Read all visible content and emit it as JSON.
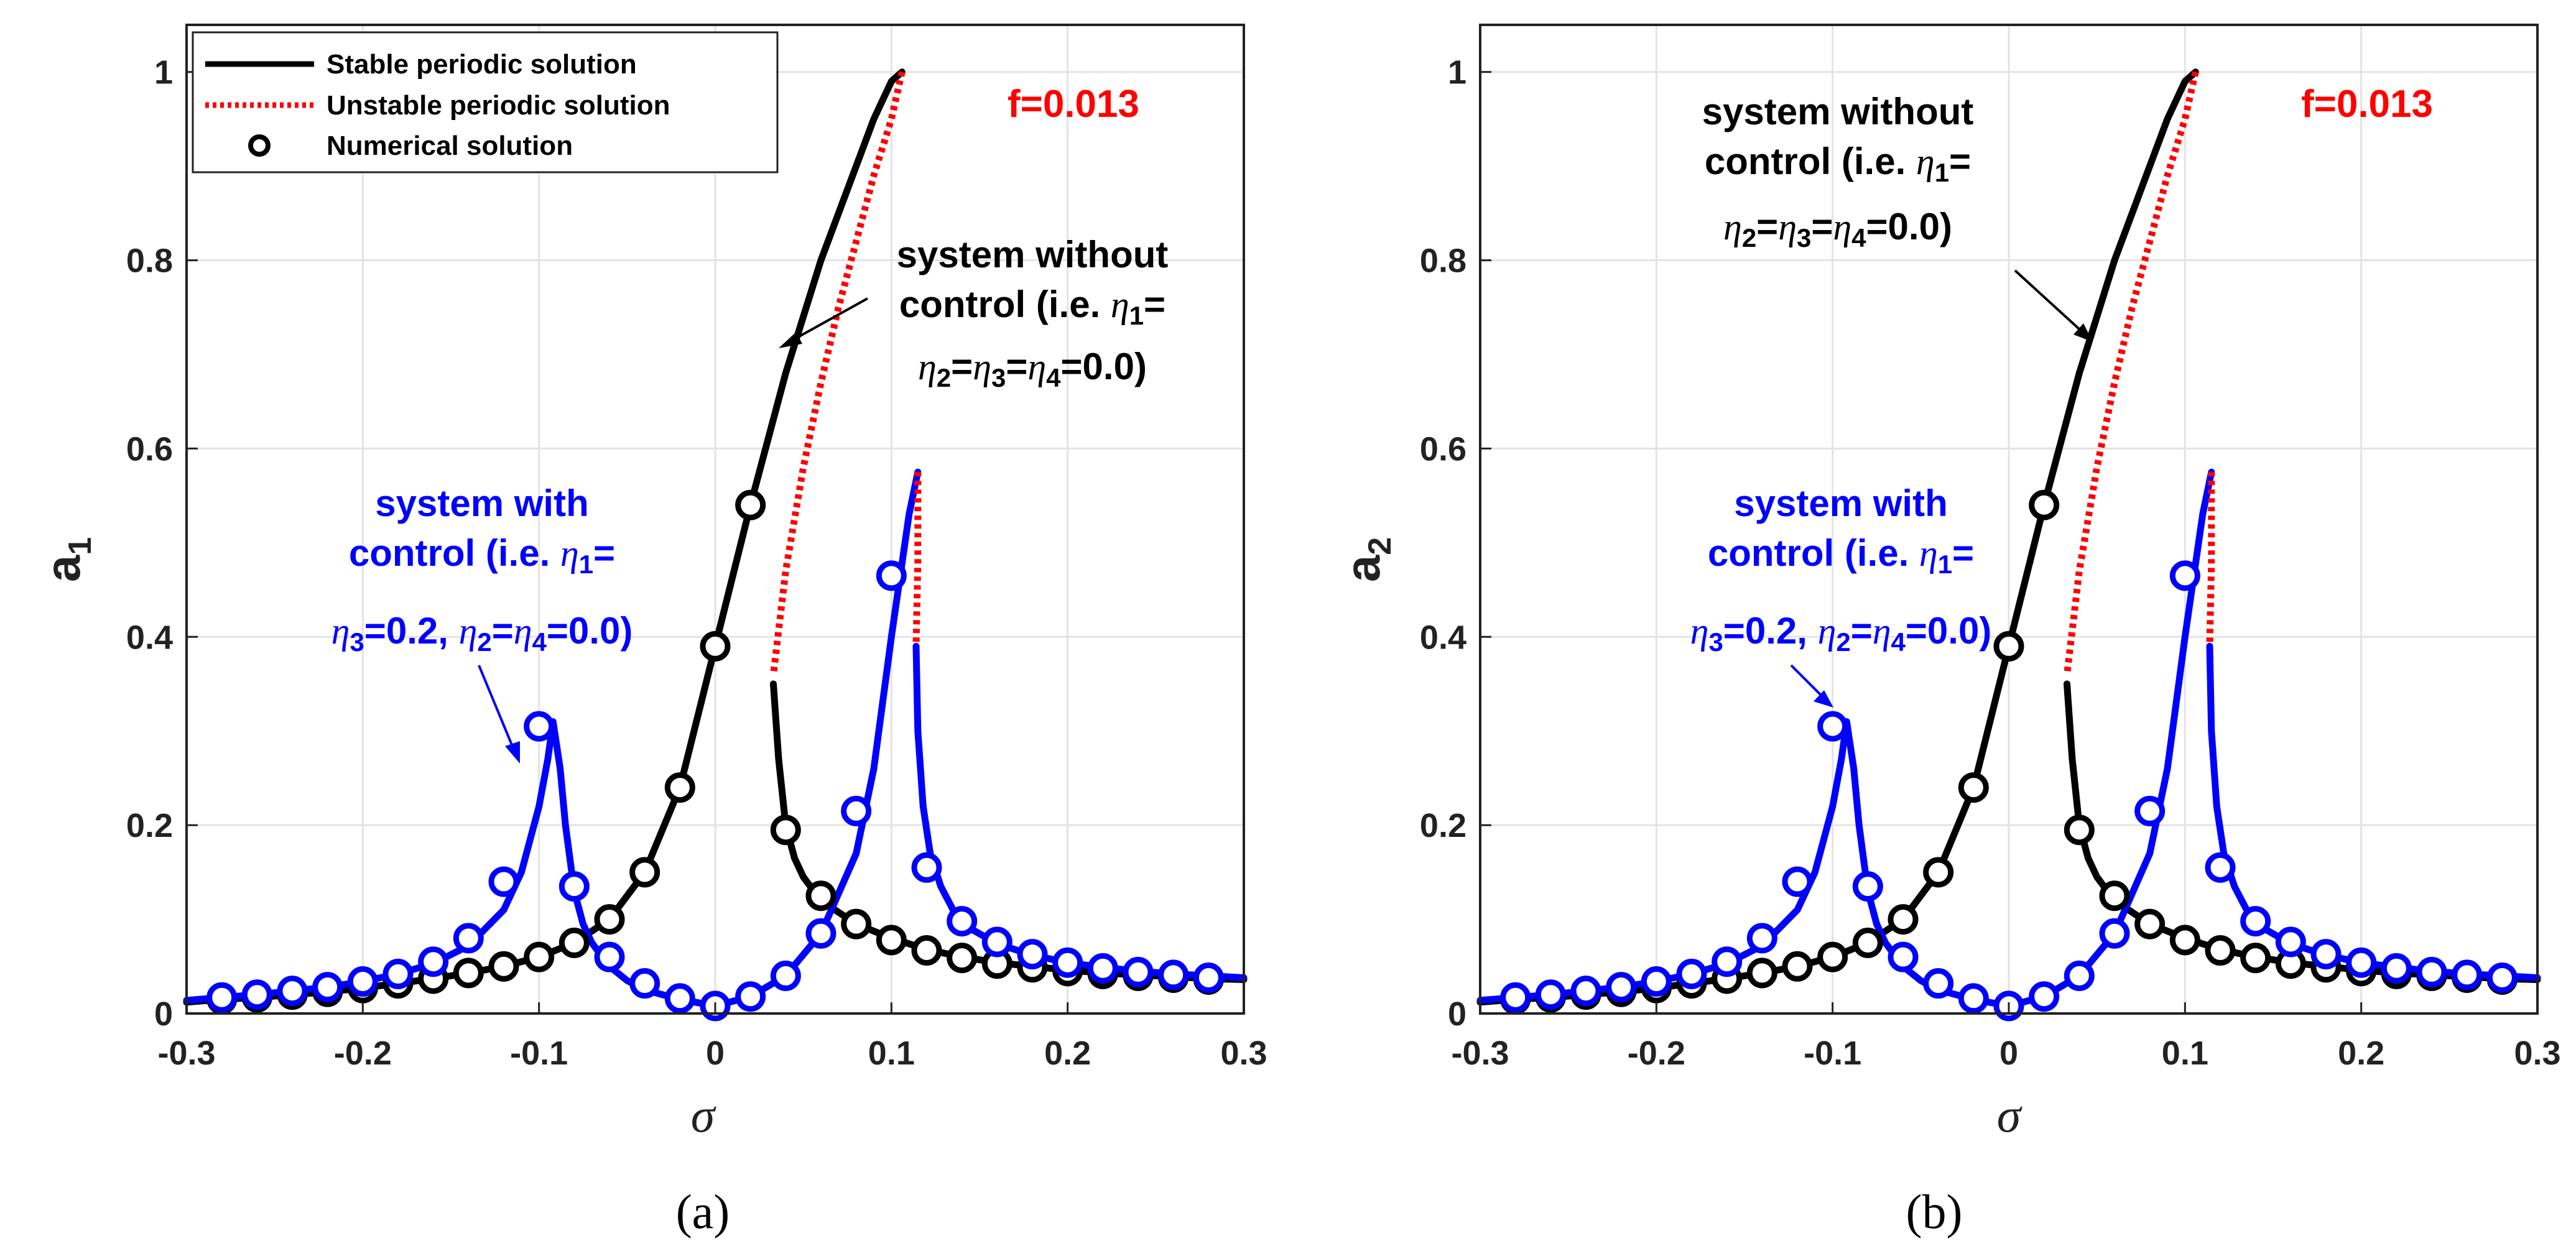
{
  "chart_data": [
    {
      "type": "line",
      "panel_caption": "(a)",
      "xlabel": "σ",
      "ylabel": "a",
      "ylabel_sub": "1",
      "xlim": [
        -0.3,
        0.3
      ],
      "ylim": [
        0,
        1.05
      ],
      "xticks": [
        -0.3,
        -0.2,
        -0.1,
        0,
        0.1,
        0.2,
        0.3
      ],
      "xtick_labels": [
        "-0.3",
        "-0.2",
        "-0.1",
        "0",
        "0.1",
        "0.2",
        "0.3"
      ],
      "yticks": [
        0,
        0.2,
        0.4,
        0.6,
        0.8,
        1
      ],
      "ytick_labels": [
        "0",
        "0.2",
        "0.4",
        "0.6",
        "0.8",
        "1"
      ],
      "grid": true,
      "legend_position": "top-left",
      "legend": [
        "Stable periodic solution",
        "Unstable periodic solution",
        "Numerical solution"
      ],
      "f_text": "f=0.013",
      "annotations": {
        "without": {
          "line1": "system without",
          "line2_pre": "control (i.e. ",
          "eta": "η",
          "s1": "1",
          "line2_post": "=",
          "l3_eta1": "η",
          "l3_s1": "2",
          "l3_eq1": "=",
          "l3_eta2": "η",
          "l3_s2": "3",
          "l3_eq2": "=",
          "l3_eta3": "η",
          "l3_s3": "4",
          "l3_post": "=0.0)"
        },
        "with": {
          "line1": "system with",
          "line2_pre": "control (i.e. ",
          "eta": "η",
          "s1": "1",
          "line2_post": "=",
          "l3_eta1": "η",
          "l3_s1": "3",
          "l3_mid": "=0.2, ",
          "l3_eta2": "η",
          "l3_s2": "2",
          "l3_eq2": "=",
          "l3_eta3": "η",
          "l3_s3": "4",
          "l3_post": "=0.0)"
        }
      },
      "series": [
        {
          "name": "without control - stable branch",
          "color": "#000000",
          "style": "solid",
          "x": [
            -0.3,
            -0.28,
            -0.26,
            -0.24,
            -0.22,
            -0.2,
            -0.18,
            -0.16,
            -0.14,
            -0.12,
            -0.1,
            -0.08,
            -0.06,
            -0.04,
            -0.02,
            0,
            0.02,
            0.04,
            0.06,
            0.08,
            0.09,
            0.1,
            0.106
          ],
          "y": [
            0.012,
            0.015,
            0.017,
            0.02,
            0.023,
            0.027,
            0.032,
            0.037,
            0.043,
            0.05,
            0.06,
            0.075,
            0.1,
            0.15,
            0.24,
            0.39,
            0.54,
            0.68,
            0.8,
            0.9,
            0.95,
            0.99,
            1.0
          ]
        },
        {
          "name": "without control - unstable branch",
          "color": "#ff0000",
          "style": "dotted",
          "x": [
            0.106,
            0.1,
            0.09,
            0.08,
            0.07,
            0.06,
            0.05,
            0.04,
            0.033
          ],
          "y": [
            1.0,
            0.95,
            0.89,
            0.82,
            0.75,
            0.67,
            0.58,
            0.47,
            0.36
          ]
        },
        {
          "name": "without control - lower stable branch",
          "color": "#000000",
          "style": "solid",
          "x": [
            0.033,
            0.036,
            0.04,
            0.045,
            0.05,
            0.06,
            0.08,
            0.1,
            0.12,
            0.14,
            0.16,
            0.18,
            0.2,
            0.22,
            0.24,
            0.26,
            0.28,
            0.3
          ],
          "y": [
            0.35,
            0.27,
            0.2,
            0.165,
            0.145,
            0.12,
            0.095,
            0.08,
            0.068,
            0.06,
            0.054,
            0.05,
            0.046,
            0.043,
            0.041,
            0.039,
            0.037,
            0.036
          ]
        },
        {
          "name": "with control - stable branch",
          "color": "#0000ff",
          "style": "solid",
          "x": [
            -0.3,
            -0.28,
            -0.26,
            -0.24,
            -0.22,
            -0.2,
            -0.18,
            -0.16,
            -0.14,
            -0.12,
            -0.11,
            -0.1,
            -0.095,
            -0.092,
            -0.088,
            -0.085,
            -0.08,
            -0.075,
            -0.07,
            -0.06,
            -0.05,
            -0.04,
            -0.02,
            0,
            0.02,
            0.04,
            0.06,
            0.08,
            0.09,
            0.1,
            0.11,
            0.115
          ],
          "y": [
            0.014,
            0.017,
            0.02,
            0.024,
            0.028,
            0.034,
            0.042,
            0.053,
            0.072,
            0.11,
            0.15,
            0.22,
            0.27,
            0.31,
            0.26,
            0.2,
            0.13,
            0.095,
            0.075,
            0.05,
            0.035,
            0.025,
            0.015,
            0.008,
            0.018,
            0.04,
            0.085,
            0.17,
            0.26,
            0.4,
            0.53,
            0.575
          ]
        },
        {
          "name": "with control - unstable branch",
          "color": "#ff0000",
          "style": "dotted",
          "x": [
            0.115,
            0.115,
            0.114
          ],
          "y": [
            0.575,
            0.48,
            0.39
          ]
        },
        {
          "name": "with control - lower stable branch",
          "color": "#0000ff",
          "style": "solid",
          "x": [
            0.114,
            0.115,
            0.118,
            0.122,
            0.128,
            0.135,
            0.145,
            0.16,
            0.18,
            0.2,
            0.22,
            0.24,
            0.26,
            0.28,
            0.3
          ],
          "y": [
            0.39,
            0.3,
            0.22,
            0.17,
            0.135,
            0.11,
            0.09,
            0.074,
            0.062,
            0.054,
            0.049,
            0.045,
            0.042,
            0.04,
            0.038
          ]
        },
        {
          "name": "numerical - without control",
          "color": "#000000",
          "style": "markers",
          "x": [
            -0.28,
            -0.26,
            -0.24,
            -0.22,
            -0.2,
            -0.18,
            -0.16,
            -0.14,
            -0.12,
            -0.1,
            -0.08,
            -0.06,
            -0.04,
            -0.02,
            0,
            0.02,
            0.04,
            0.06,
            0.08,
            0.1,
            0.12,
            0.14,
            0.16,
            0.18,
            0.2,
            0.22,
            0.24,
            0.26,
            0.28
          ],
          "y": [
            0.015,
            0.017,
            0.02,
            0.023,
            0.027,
            0.032,
            0.037,
            0.043,
            0.05,
            0.06,
            0.075,
            0.1,
            0.15,
            0.24,
            0.39,
            0.54,
            0.195,
            0.125,
            0.095,
            0.078,
            0.067,
            0.059,
            0.053,
            0.049,
            0.045,
            0.042,
            0.04,
            0.038,
            0.036
          ]
        },
        {
          "name": "numerical - with control",
          "color": "#0000ff",
          "style": "markers",
          "x": [
            -0.28,
            -0.26,
            -0.24,
            -0.22,
            -0.2,
            -0.18,
            -0.16,
            -0.14,
            -0.12,
            -0.1,
            -0.08,
            -0.06,
            -0.04,
            -0.02,
            0,
            0.02,
            0.04,
            0.06,
            0.08,
            0.1,
            0.12,
            0.14,
            0.16,
            0.18,
            0.2,
            0.22,
            0.24,
            0.26,
            0.28
          ],
          "y": [
            0.017,
            0.02,
            0.024,
            0.028,
            0.034,
            0.042,
            0.055,
            0.08,
            0.14,
            0.305,
            0.135,
            0.06,
            0.032,
            0.016,
            0.008,
            0.018,
            0.04,
            0.085,
            0.215,
            0.465,
            0.155,
            0.098,
            0.076,
            0.063,
            0.054,
            0.048,
            0.044,
            0.041,
            0.038
          ]
        }
      ]
    },
    {
      "type": "line",
      "panel_caption": "(b)",
      "xlabel": "σ",
      "ylabel": "a",
      "ylabel_sub": "2",
      "xlim": [
        -0.3,
        0.3
      ],
      "ylim": [
        0,
        1.05
      ],
      "xticks": [
        -0.3,
        -0.2,
        -0.1,
        0,
        0.1,
        0.2,
        0.3
      ],
      "xtick_labels": [
        "-0.3",
        "-0.2",
        "-0.1",
        "0",
        "0.1",
        "0.2",
        "0.3"
      ],
      "yticks": [
        0,
        0.2,
        0.4,
        0.6,
        0.8,
        1
      ],
      "ytick_labels": [
        "0",
        "0.2",
        "0.4",
        "0.6",
        "0.8",
        "1"
      ],
      "grid": true,
      "f_text": "f=0.013",
      "annotations": {
        "without": {
          "line1": "system without",
          "line2_pre": "control (i.e. ",
          "eta": "η",
          "s1": "1",
          "line2_post": "=",
          "l3_eta1": "η",
          "l3_s1": "2",
          "l3_eq1": "=",
          "l3_eta2": "η",
          "l3_s2": "3",
          "l3_eq2": "=",
          "l3_eta3": "η",
          "l3_s3": "4",
          "l3_post": "=0.0)"
        },
        "with": {
          "line1": "system with",
          "line2_pre": "control (i.e. ",
          "eta": "η",
          "s1": "1",
          "line2_post": "=",
          "l3_eta1": "η",
          "l3_s1": "3",
          "l3_mid": "=0.2, ",
          "l3_eta2": "η",
          "l3_s2": "2",
          "l3_eq2": "=",
          "l3_eta3": "η",
          "l3_s3": "4",
          "l3_post": "=0.0)"
        }
      },
      "series": [
        {
          "name": "without control - stable branch",
          "color": "#000000",
          "style": "solid",
          "x": [
            -0.3,
            -0.28,
            -0.26,
            -0.24,
            -0.22,
            -0.2,
            -0.18,
            -0.16,
            -0.14,
            -0.12,
            -0.1,
            -0.08,
            -0.06,
            -0.04,
            -0.02,
            0,
            0.02,
            0.04,
            0.06,
            0.08,
            0.09,
            0.1,
            0.106
          ],
          "y": [
            0.012,
            0.015,
            0.017,
            0.02,
            0.023,
            0.027,
            0.032,
            0.037,
            0.043,
            0.05,
            0.06,
            0.075,
            0.1,
            0.15,
            0.24,
            0.39,
            0.54,
            0.68,
            0.8,
            0.9,
            0.95,
            0.99,
            1.0
          ]
        },
        {
          "name": "without control - unstable branch",
          "color": "#ff0000",
          "style": "dotted",
          "x": [
            0.106,
            0.1,
            0.09,
            0.08,
            0.07,
            0.06,
            0.05,
            0.04,
            0.033
          ],
          "y": [
            1.0,
            0.95,
            0.89,
            0.82,
            0.75,
            0.67,
            0.58,
            0.47,
            0.36
          ]
        },
        {
          "name": "without control - lower stable branch",
          "color": "#000000",
          "style": "solid",
          "x": [
            0.033,
            0.036,
            0.04,
            0.045,
            0.05,
            0.06,
            0.08,
            0.1,
            0.12,
            0.14,
            0.16,
            0.18,
            0.2,
            0.22,
            0.24,
            0.26,
            0.28,
            0.3
          ],
          "y": [
            0.35,
            0.27,
            0.2,
            0.165,
            0.145,
            0.12,
            0.095,
            0.08,
            0.068,
            0.06,
            0.054,
            0.05,
            0.046,
            0.043,
            0.041,
            0.039,
            0.037,
            0.036
          ]
        },
        {
          "name": "with control - stable branch",
          "color": "#0000ff",
          "style": "solid",
          "x": [
            -0.3,
            -0.28,
            -0.26,
            -0.24,
            -0.22,
            -0.2,
            -0.18,
            -0.16,
            -0.14,
            -0.12,
            -0.11,
            -0.1,
            -0.095,
            -0.092,
            -0.088,
            -0.085,
            -0.08,
            -0.075,
            -0.07,
            -0.06,
            -0.05,
            -0.04,
            -0.02,
            0,
            0.02,
            0.04,
            0.06,
            0.08,
            0.09,
            0.1,
            0.11,
            0.115
          ],
          "y": [
            0.014,
            0.017,
            0.02,
            0.024,
            0.028,
            0.034,
            0.042,
            0.053,
            0.072,
            0.11,
            0.15,
            0.22,
            0.27,
            0.31,
            0.26,
            0.2,
            0.13,
            0.095,
            0.075,
            0.05,
            0.035,
            0.025,
            0.015,
            0.008,
            0.018,
            0.04,
            0.085,
            0.17,
            0.26,
            0.4,
            0.53,
            0.575
          ]
        },
        {
          "name": "with control - unstable branch",
          "color": "#ff0000",
          "style": "dotted",
          "x": [
            0.115,
            0.115,
            0.114
          ],
          "y": [
            0.575,
            0.48,
            0.39
          ]
        },
        {
          "name": "with control - lower stable branch",
          "color": "#0000ff",
          "style": "solid",
          "x": [
            0.114,
            0.115,
            0.118,
            0.122,
            0.128,
            0.135,
            0.145,
            0.16,
            0.18,
            0.2,
            0.22,
            0.24,
            0.26,
            0.28,
            0.3
          ],
          "y": [
            0.39,
            0.3,
            0.22,
            0.17,
            0.135,
            0.11,
            0.09,
            0.074,
            0.062,
            0.054,
            0.049,
            0.045,
            0.042,
            0.04,
            0.038
          ]
        },
        {
          "name": "numerical - without control",
          "color": "#000000",
          "style": "markers",
          "x": [
            -0.28,
            -0.26,
            -0.24,
            -0.22,
            -0.2,
            -0.18,
            -0.16,
            -0.14,
            -0.12,
            -0.1,
            -0.08,
            -0.06,
            -0.04,
            -0.02,
            0,
            0.02,
            0.04,
            0.06,
            0.08,
            0.1,
            0.12,
            0.14,
            0.16,
            0.18,
            0.2,
            0.22,
            0.24,
            0.26,
            0.28
          ],
          "y": [
            0.015,
            0.017,
            0.02,
            0.023,
            0.027,
            0.032,
            0.037,
            0.043,
            0.05,
            0.06,
            0.075,
            0.1,
            0.15,
            0.24,
            0.39,
            0.54,
            0.195,
            0.125,
            0.095,
            0.078,
            0.067,
            0.059,
            0.053,
            0.049,
            0.045,
            0.042,
            0.04,
            0.038,
            0.036
          ]
        },
        {
          "name": "numerical - with control",
          "color": "#0000ff",
          "style": "markers",
          "x": [
            -0.28,
            -0.26,
            -0.24,
            -0.22,
            -0.2,
            -0.18,
            -0.16,
            -0.14,
            -0.12,
            -0.1,
            -0.08,
            -0.06,
            -0.04,
            -0.02,
            0,
            0.02,
            0.04,
            0.06,
            0.08,
            0.1,
            0.12,
            0.14,
            0.16,
            0.18,
            0.2,
            0.22,
            0.24,
            0.26,
            0.28
          ],
          "y": [
            0.017,
            0.02,
            0.024,
            0.028,
            0.034,
            0.042,
            0.055,
            0.08,
            0.14,
            0.305,
            0.135,
            0.06,
            0.032,
            0.016,
            0.008,
            0.018,
            0.04,
            0.085,
            0.215,
            0.465,
            0.155,
            0.098,
            0.076,
            0.063,
            0.054,
            0.048,
            0.044,
            0.041,
            0.038
          ]
        }
      ]
    }
  ]
}
